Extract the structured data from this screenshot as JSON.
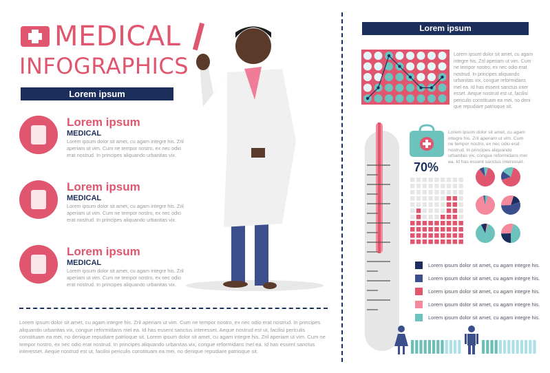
{
  "header": {
    "title_line1": "MEDICAL",
    "title_line2": "INFOGRAPHICS",
    "banner": "Lorem ipsum"
  },
  "items": [
    {
      "heading": "Lorem ipsum",
      "sub": "MEDICAL",
      "text": "Lorem ipsum dolor sit amet, cu agam integre his. Zril aperiam ut vim. Cum ne tempor nostro, ex nec odio erat nostrud. In principes aliquando urbanitas vix.",
      "icon": "syringe-icon"
    },
    {
      "heading": "Lorem ipsum",
      "sub": "MEDICAL",
      "text": "Lorem ipsum dolor sit amet, cu agam integre his. Zril aperiam ut vim. Cum ne tempor nostro, ex nec odio erat nostrud. In principes aliquando urbanitas vix.",
      "icon": "clipboard-icon"
    },
    {
      "heading": "Lorem ipsum",
      "sub": "MEDICAL",
      "text": "Lorem ipsum dolor sit amet, cu agam integre his. Zril aperiam ut vim. Cum ne tempor nostro, ex nec odio erat nostrud. In principes aliquando urbanitas vix.",
      "icon": "medicine-bottles-icon"
    }
  ],
  "footer_text": "Lorem ipsum dolor sit amet, cu agam integre his. Zril aperiam ut vim. Cum ne tempor nostro, ex nec odio erat nostrud. In principes aliquando urbanitas vix, congue reformidans mel ea. Id has essent sanctus interesset. Aeque nostrud est ut, facilisi periculis constituam ea mei, no denique repudiare patrioque sit. Lorem ipsum dolor sit amet, cu agam integre his. Zril aperiam ut vim. Cum ne tempor nostro, ex nec odio erat nostrud. In principes aliquando urbanitas vix, congue reformidans mel ea. Id has essent sanctus interesset. Aeque nostrud est ut, facilisi periculis constituam ea mei, no denique repudiare patrioque sit.",
  "right": {
    "banner": "Lorem ipsum",
    "dot_chart_text": "Lorem ipsum dolor sit amet, cu agam integre his. Zril aperiam ut vim. Cum ne tempor nostro, ex nec odio erat nostrud. In principes aliquando urbanitas vix, congue reformidans mel ea. Id has essent sanctus inter esset. Aeque nostrud est ut, facilisi periculis constituam ea mei, no deni que repudiare patrioque sit.",
    "kit_text": "Lorem ipsum dolor sit amet, cu agam integre his. Zril aperiam ut vim. Cum ne tempor nostro, ex nec odio erat nostrud. In principes aliquando urbanitas vix, congue reformidans mel ea. Id has essent sanctus interesset.",
    "percent": "70%",
    "legend": [
      {
        "text": "Lorem ipsum dolor sit amet, cu agam integre his.",
        "color": "#1c2f5c"
      },
      {
        "text": "Lorem ipsum dolor sit amet, cu agam integre his.",
        "color": "#3b4f8c"
      },
      {
        "text": "Lorem ipsum dolor sit amet, cu agam integre his.",
        "color": "#e0566f"
      },
      {
        "text": "Lorem ipsum dolor sit amet, cu agam integre his.",
        "color": "#f4899d"
      },
      {
        "text": "Lorem ipsum dolor sit amet, cu agam integre his.",
        "color": "#6cc3bd"
      }
    ]
  },
  "chart_data": [
    {
      "type": "scatter",
      "name": "dot-line-chart",
      "columns": 8,
      "rows": 5,
      "values": [
        1,
        2,
        5,
        4,
        3,
        2,
        2,
        3
      ]
    },
    {
      "type": "bar",
      "name": "square-grid",
      "columns": 9,
      "rows": 11,
      "values": [
        4,
        6,
        4,
        4,
        4,
        5,
        8,
        8,
        4
      ]
    },
    {
      "type": "pie",
      "name": "pies",
      "pies": [
        {
          "values": [
            85,
            8,
            7
          ],
          "colors": [
            "#e0566f",
            "#3b4f8c",
            "#6cc3bd"
          ]
        },
        {
          "values": [
            65,
            15,
            20
          ],
          "colors": [
            "#e0566f",
            "#3b4f8c",
            "#6cc3bd"
          ]
        },
        {
          "values": [
            92,
            3,
            5
          ],
          "colors": [
            "#f4899d",
            "#3b4f8c",
            "#6cc3bd"
          ]
        },
        {
          "values": [
            15,
            55,
            30
          ],
          "colors": [
            "#1c2f5c",
            "#3b4f8c",
            "#f4899d"
          ]
        },
        {
          "values": [
            88,
            10,
            2
          ],
          "colors": [
            "#6cc3bd",
            "#1c2f5c",
            "#f4899d"
          ]
        },
        {
          "values": [
            45,
            25,
            30
          ],
          "colors": [
            "#6cc3bd",
            "#1c2f5c",
            "#f4899d"
          ]
        }
      ]
    },
    {
      "type": "bar",
      "name": "gender-bars",
      "series": [
        {
          "name": "female",
          "dark": 8,
          "total": 12
        },
        {
          "name": "male",
          "dark": 4,
          "total": 13
        }
      ]
    }
  ]
}
